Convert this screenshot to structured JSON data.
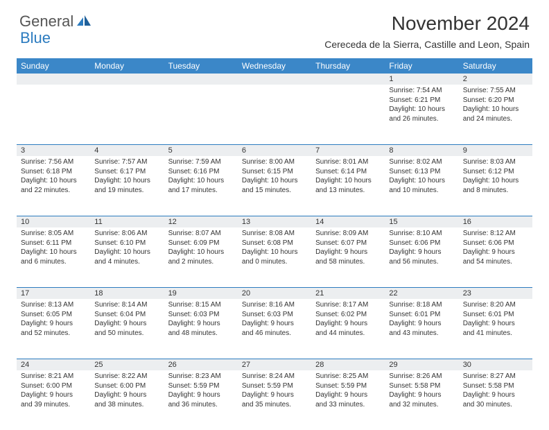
{
  "logo": {
    "text1": "General",
    "text2": "Blue"
  },
  "title": "November 2024",
  "location": "Cereceda de la Sierra, Castille and Leon, Spain",
  "colors": {
    "header_bg": "#3b87c8",
    "band_bg": "#eceef0",
    "band_border": "#2b7bbf",
    "text": "#333333",
    "logo_gray": "#555555",
    "logo_blue": "#2b7bbf"
  },
  "weekdays": [
    "Sunday",
    "Monday",
    "Tuesday",
    "Wednesday",
    "Thursday",
    "Friday",
    "Saturday"
  ],
  "weeks": [
    [
      null,
      null,
      null,
      null,
      null,
      {
        "n": "1",
        "sr": "Sunrise: 7:54 AM",
        "ss": "Sunset: 6:21 PM",
        "d1": "Daylight: 10 hours",
        "d2": "and 26 minutes."
      },
      {
        "n": "2",
        "sr": "Sunrise: 7:55 AM",
        "ss": "Sunset: 6:20 PM",
        "d1": "Daylight: 10 hours",
        "d2": "and 24 minutes."
      }
    ],
    [
      {
        "n": "3",
        "sr": "Sunrise: 7:56 AM",
        "ss": "Sunset: 6:18 PM",
        "d1": "Daylight: 10 hours",
        "d2": "and 22 minutes."
      },
      {
        "n": "4",
        "sr": "Sunrise: 7:57 AM",
        "ss": "Sunset: 6:17 PM",
        "d1": "Daylight: 10 hours",
        "d2": "and 19 minutes."
      },
      {
        "n": "5",
        "sr": "Sunrise: 7:59 AM",
        "ss": "Sunset: 6:16 PM",
        "d1": "Daylight: 10 hours",
        "d2": "and 17 minutes."
      },
      {
        "n": "6",
        "sr": "Sunrise: 8:00 AM",
        "ss": "Sunset: 6:15 PM",
        "d1": "Daylight: 10 hours",
        "d2": "and 15 minutes."
      },
      {
        "n": "7",
        "sr": "Sunrise: 8:01 AM",
        "ss": "Sunset: 6:14 PM",
        "d1": "Daylight: 10 hours",
        "d2": "and 13 minutes."
      },
      {
        "n": "8",
        "sr": "Sunrise: 8:02 AM",
        "ss": "Sunset: 6:13 PM",
        "d1": "Daylight: 10 hours",
        "d2": "and 10 minutes."
      },
      {
        "n": "9",
        "sr": "Sunrise: 8:03 AM",
        "ss": "Sunset: 6:12 PM",
        "d1": "Daylight: 10 hours",
        "d2": "and 8 minutes."
      }
    ],
    [
      {
        "n": "10",
        "sr": "Sunrise: 8:05 AM",
        "ss": "Sunset: 6:11 PM",
        "d1": "Daylight: 10 hours",
        "d2": "and 6 minutes."
      },
      {
        "n": "11",
        "sr": "Sunrise: 8:06 AM",
        "ss": "Sunset: 6:10 PM",
        "d1": "Daylight: 10 hours",
        "d2": "and 4 minutes."
      },
      {
        "n": "12",
        "sr": "Sunrise: 8:07 AM",
        "ss": "Sunset: 6:09 PM",
        "d1": "Daylight: 10 hours",
        "d2": "and 2 minutes."
      },
      {
        "n": "13",
        "sr": "Sunrise: 8:08 AM",
        "ss": "Sunset: 6:08 PM",
        "d1": "Daylight: 10 hours",
        "d2": "and 0 minutes."
      },
      {
        "n": "14",
        "sr": "Sunrise: 8:09 AM",
        "ss": "Sunset: 6:07 PM",
        "d1": "Daylight: 9 hours",
        "d2": "and 58 minutes."
      },
      {
        "n": "15",
        "sr": "Sunrise: 8:10 AM",
        "ss": "Sunset: 6:06 PM",
        "d1": "Daylight: 9 hours",
        "d2": "and 56 minutes."
      },
      {
        "n": "16",
        "sr": "Sunrise: 8:12 AM",
        "ss": "Sunset: 6:06 PM",
        "d1": "Daylight: 9 hours",
        "d2": "and 54 minutes."
      }
    ],
    [
      {
        "n": "17",
        "sr": "Sunrise: 8:13 AM",
        "ss": "Sunset: 6:05 PM",
        "d1": "Daylight: 9 hours",
        "d2": "and 52 minutes."
      },
      {
        "n": "18",
        "sr": "Sunrise: 8:14 AM",
        "ss": "Sunset: 6:04 PM",
        "d1": "Daylight: 9 hours",
        "d2": "and 50 minutes."
      },
      {
        "n": "19",
        "sr": "Sunrise: 8:15 AM",
        "ss": "Sunset: 6:03 PM",
        "d1": "Daylight: 9 hours",
        "d2": "and 48 minutes."
      },
      {
        "n": "20",
        "sr": "Sunrise: 8:16 AM",
        "ss": "Sunset: 6:03 PM",
        "d1": "Daylight: 9 hours",
        "d2": "and 46 minutes."
      },
      {
        "n": "21",
        "sr": "Sunrise: 8:17 AM",
        "ss": "Sunset: 6:02 PM",
        "d1": "Daylight: 9 hours",
        "d2": "and 44 minutes."
      },
      {
        "n": "22",
        "sr": "Sunrise: 8:18 AM",
        "ss": "Sunset: 6:01 PM",
        "d1": "Daylight: 9 hours",
        "d2": "and 43 minutes."
      },
      {
        "n": "23",
        "sr": "Sunrise: 8:20 AM",
        "ss": "Sunset: 6:01 PM",
        "d1": "Daylight: 9 hours",
        "d2": "and 41 minutes."
      }
    ],
    [
      {
        "n": "24",
        "sr": "Sunrise: 8:21 AM",
        "ss": "Sunset: 6:00 PM",
        "d1": "Daylight: 9 hours",
        "d2": "and 39 minutes."
      },
      {
        "n": "25",
        "sr": "Sunrise: 8:22 AM",
        "ss": "Sunset: 6:00 PM",
        "d1": "Daylight: 9 hours",
        "d2": "and 38 minutes."
      },
      {
        "n": "26",
        "sr": "Sunrise: 8:23 AM",
        "ss": "Sunset: 5:59 PM",
        "d1": "Daylight: 9 hours",
        "d2": "and 36 minutes."
      },
      {
        "n": "27",
        "sr": "Sunrise: 8:24 AM",
        "ss": "Sunset: 5:59 PM",
        "d1": "Daylight: 9 hours",
        "d2": "and 35 minutes."
      },
      {
        "n": "28",
        "sr": "Sunrise: 8:25 AM",
        "ss": "Sunset: 5:59 PM",
        "d1": "Daylight: 9 hours",
        "d2": "and 33 minutes."
      },
      {
        "n": "29",
        "sr": "Sunrise: 8:26 AM",
        "ss": "Sunset: 5:58 PM",
        "d1": "Daylight: 9 hours",
        "d2": "and 32 minutes."
      },
      {
        "n": "30",
        "sr": "Sunrise: 8:27 AM",
        "ss": "Sunset: 5:58 PM",
        "d1": "Daylight: 9 hours",
        "d2": "and 30 minutes."
      }
    ]
  ]
}
